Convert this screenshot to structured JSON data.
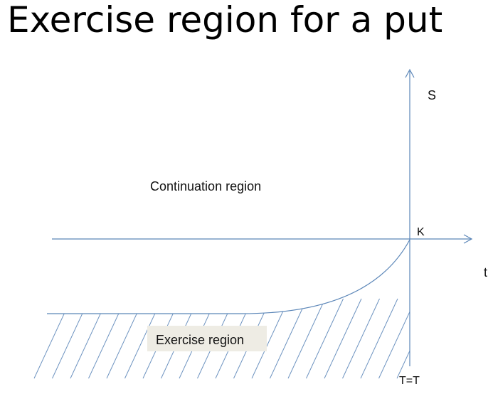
{
  "title": "Exercise region for a put",
  "diagram": {
    "axis_vertical_label": "S",
    "axis_horizontal_label": "t",
    "strike_label": "K",
    "maturity_label": "T=T",
    "continuation_label": "Continuation region",
    "exercise_label": "Exercise region"
  },
  "colors": {
    "line": "#5b86b8",
    "hatch": "#6d93c0",
    "exercise_label_bg": "#eeece4"
  }
}
